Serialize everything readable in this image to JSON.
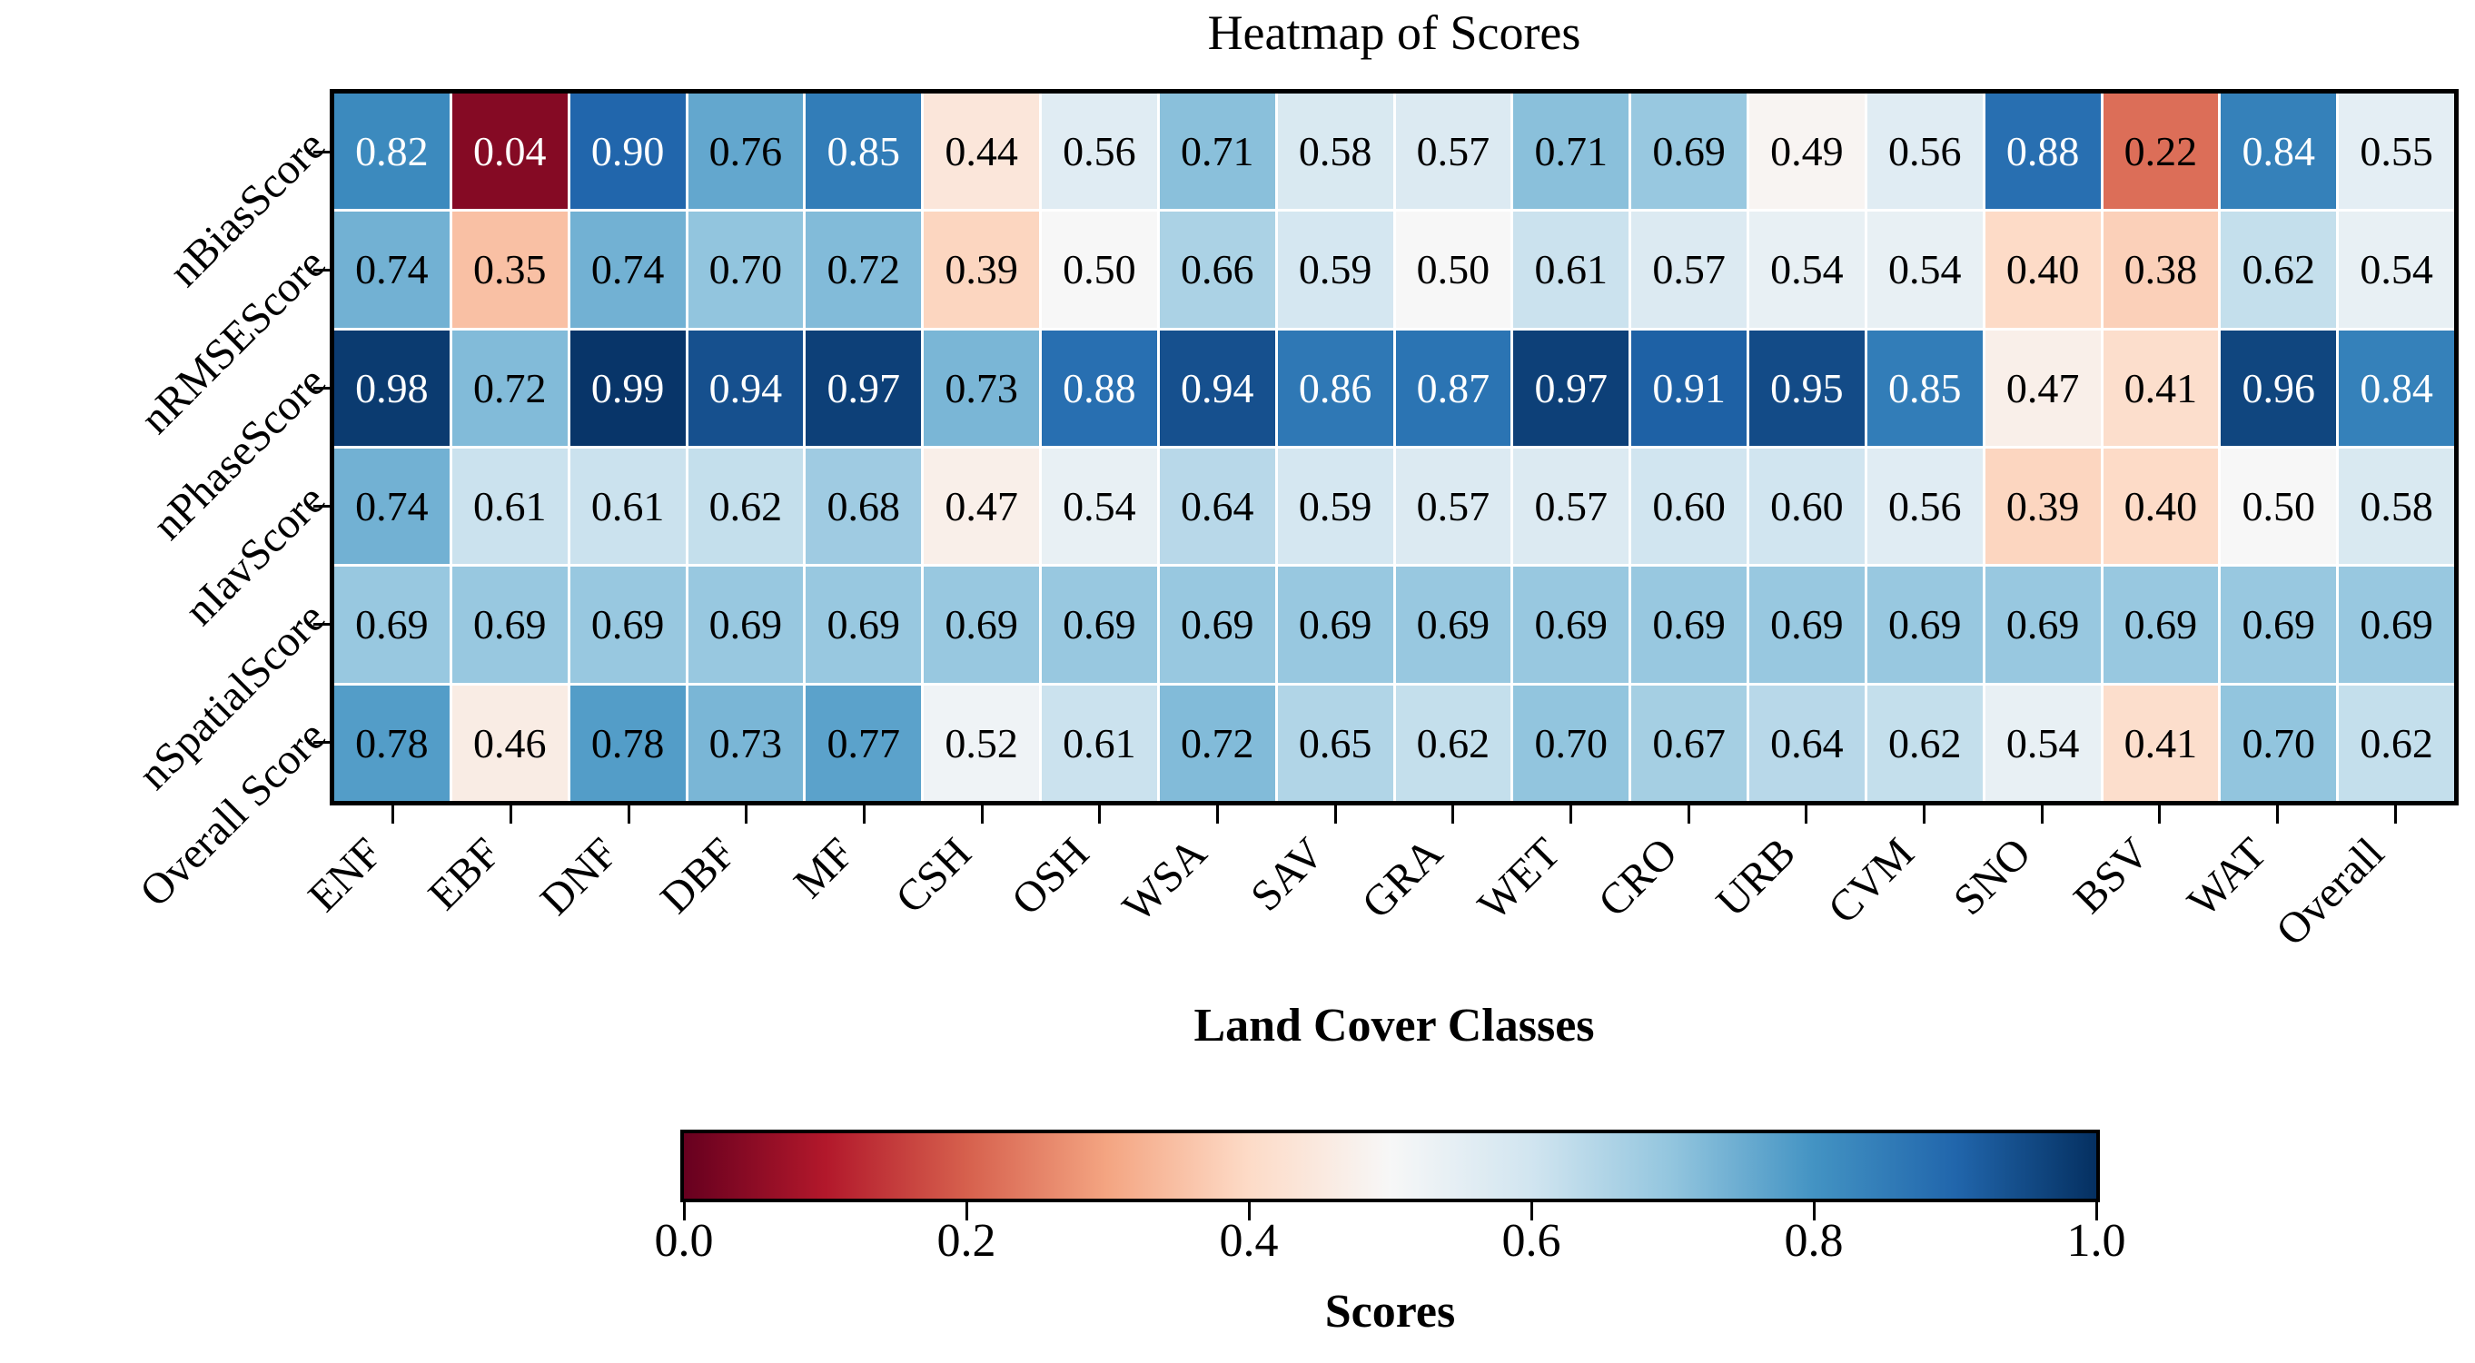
{
  "title": "Heatmap of Scores",
  "xlabel": "Land Cover Classes",
  "colorbar": {
    "label": "Scores",
    "tick_labels": [
      "0.0",
      "0.2",
      "0.4",
      "0.6",
      "0.8",
      "1.0"
    ],
    "min": 0.0,
    "max": 1.0
  },
  "chart_data": {
    "type": "heatmap",
    "title": "Heatmap of Scores",
    "xlabel": "Land Cover Classes",
    "colorbar_label": "Scores",
    "colormap": "RdBu",
    "vmin": 0.0,
    "vmax": 1.0,
    "grid": false,
    "columns": [
      "ENF",
      "EBF",
      "DNF",
      "DBF",
      "MF",
      "CSH",
      "OSH",
      "WSA",
      "SAV",
      "GRA",
      "WET",
      "CRO",
      "URB",
      "CVM",
      "SNO",
      "BSV",
      "WAT",
      "Overall"
    ],
    "rows": [
      "nBiasScore",
      "nRMSEScore",
      "nPhaseScore",
      "nIavScore",
      "nSpatialScore",
      "Overall Score"
    ],
    "values": [
      [
        0.82,
        0.04,
        0.9,
        0.76,
        0.85,
        0.44,
        0.56,
        0.71,
        0.58,
        0.57,
        0.71,
        0.69,
        0.49,
        0.56,
        0.88,
        0.22,
        0.84,
        0.55
      ],
      [
        0.74,
        0.35,
        0.74,
        0.7,
        0.72,
        0.39,
        0.5,
        0.66,
        0.59,
        0.5,
        0.61,
        0.57,
        0.54,
        0.54,
        0.4,
        0.38,
        0.62,
        0.54
      ],
      [
        0.98,
        0.72,
        0.99,
        0.94,
        0.97,
        0.73,
        0.88,
        0.94,
        0.86,
        0.87,
        0.97,
        0.91,
        0.95,
        0.85,
        0.47,
        0.41,
        0.96,
        0.84
      ],
      [
        0.74,
        0.61,
        0.61,
        0.62,
        0.68,
        0.47,
        0.54,
        0.64,
        0.59,
        0.57,
        0.57,
        0.6,
        0.6,
        0.56,
        0.39,
        0.4,
        0.5,
        0.58
      ],
      [
        0.69,
        0.69,
        0.69,
        0.69,
        0.69,
        0.69,
        0.69,
        0.69,
        0.69,
        0.69,
        0.69,
        0.69,
        0.69,
        0.69,
        0.69,
        0.69,
        0.69,
        0.69
      ],
      [
        0.78,
        0.46,
        0.78,
        0.73,
        0.77,
        0.52,
        0.61,
        0.72,
        0.65,
        0.62,
        0.7,
        0.67,
        0.64,
        0.62,
        0.54,
        0.41,
        0.7,
        0.62
      ]
    ],
    "colormap_stops": [
      {
        "pos": 0.0,
        "color": "#67001f"
      },
      {
        "pos": 0.1,
        "color": "#b2182b"
      },
      {
        "pos": 0.2,
        "color": "#d6604d"
      },
      {
        "pos": 0.3,
        "color": "#f4a582"
      },
      {
        "pos": 0.4,
        "color": "#fddbc7"
      },
      {
        "pos": 0.5,
        "color": "#f7f7f7"
      },
      {
        "pos": 0.6,
        "color": "#d1e5f0"
      },
      {
        "pos": 0.7,
        "color": "#92c5de"
      },
      {
        "pos": 0.8,
        "color": "#4393c3"
      },
      {
        "pos": 0.9,
        "color": "#2166ac"
      },
      {
        "pos": 1.0,
        "color": "#053061"
      }
    ],
    "annotation_text_colors": {
      "light": "#ffffff",
      "dark": "#000000"
    }
  }
}
